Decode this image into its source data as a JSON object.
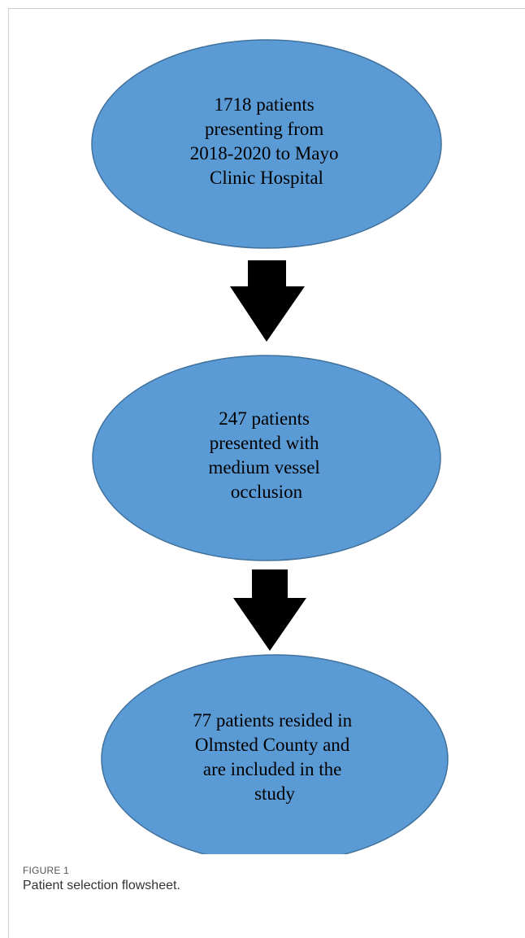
{
  "colors": {
    "node_fill": "#5b9bd5",
    "node_stroke": "#41719c",
    "arrow_fill": "#000000"
  },
  "nodes": [
    {
      "id": "node-1",
      "lines": [
        "1718 patients",
        "presenting from",
        "2018-2020 to Mayo",
        "Clinic Hospital"
      ]
    },
    {
      "id": "node-2",
      "lines": [
        "247 patients",
        "presented with",
        "medium vessel",
        "occlusion"
      ]
    },
    {
      "id": "node-3",
      "lines": [
        "77 patients resided in",
        "Olmsted County and",
        "are included in the",
        "study"
      ]
    }
  ],
  "arrows": [
    "arrow-down-icon",
    "arrow-down-icon"
  ],
  "figure": {
    "label": "FIGURE 1",
    "caption": "Patient selection flowsheet."
  }
}
